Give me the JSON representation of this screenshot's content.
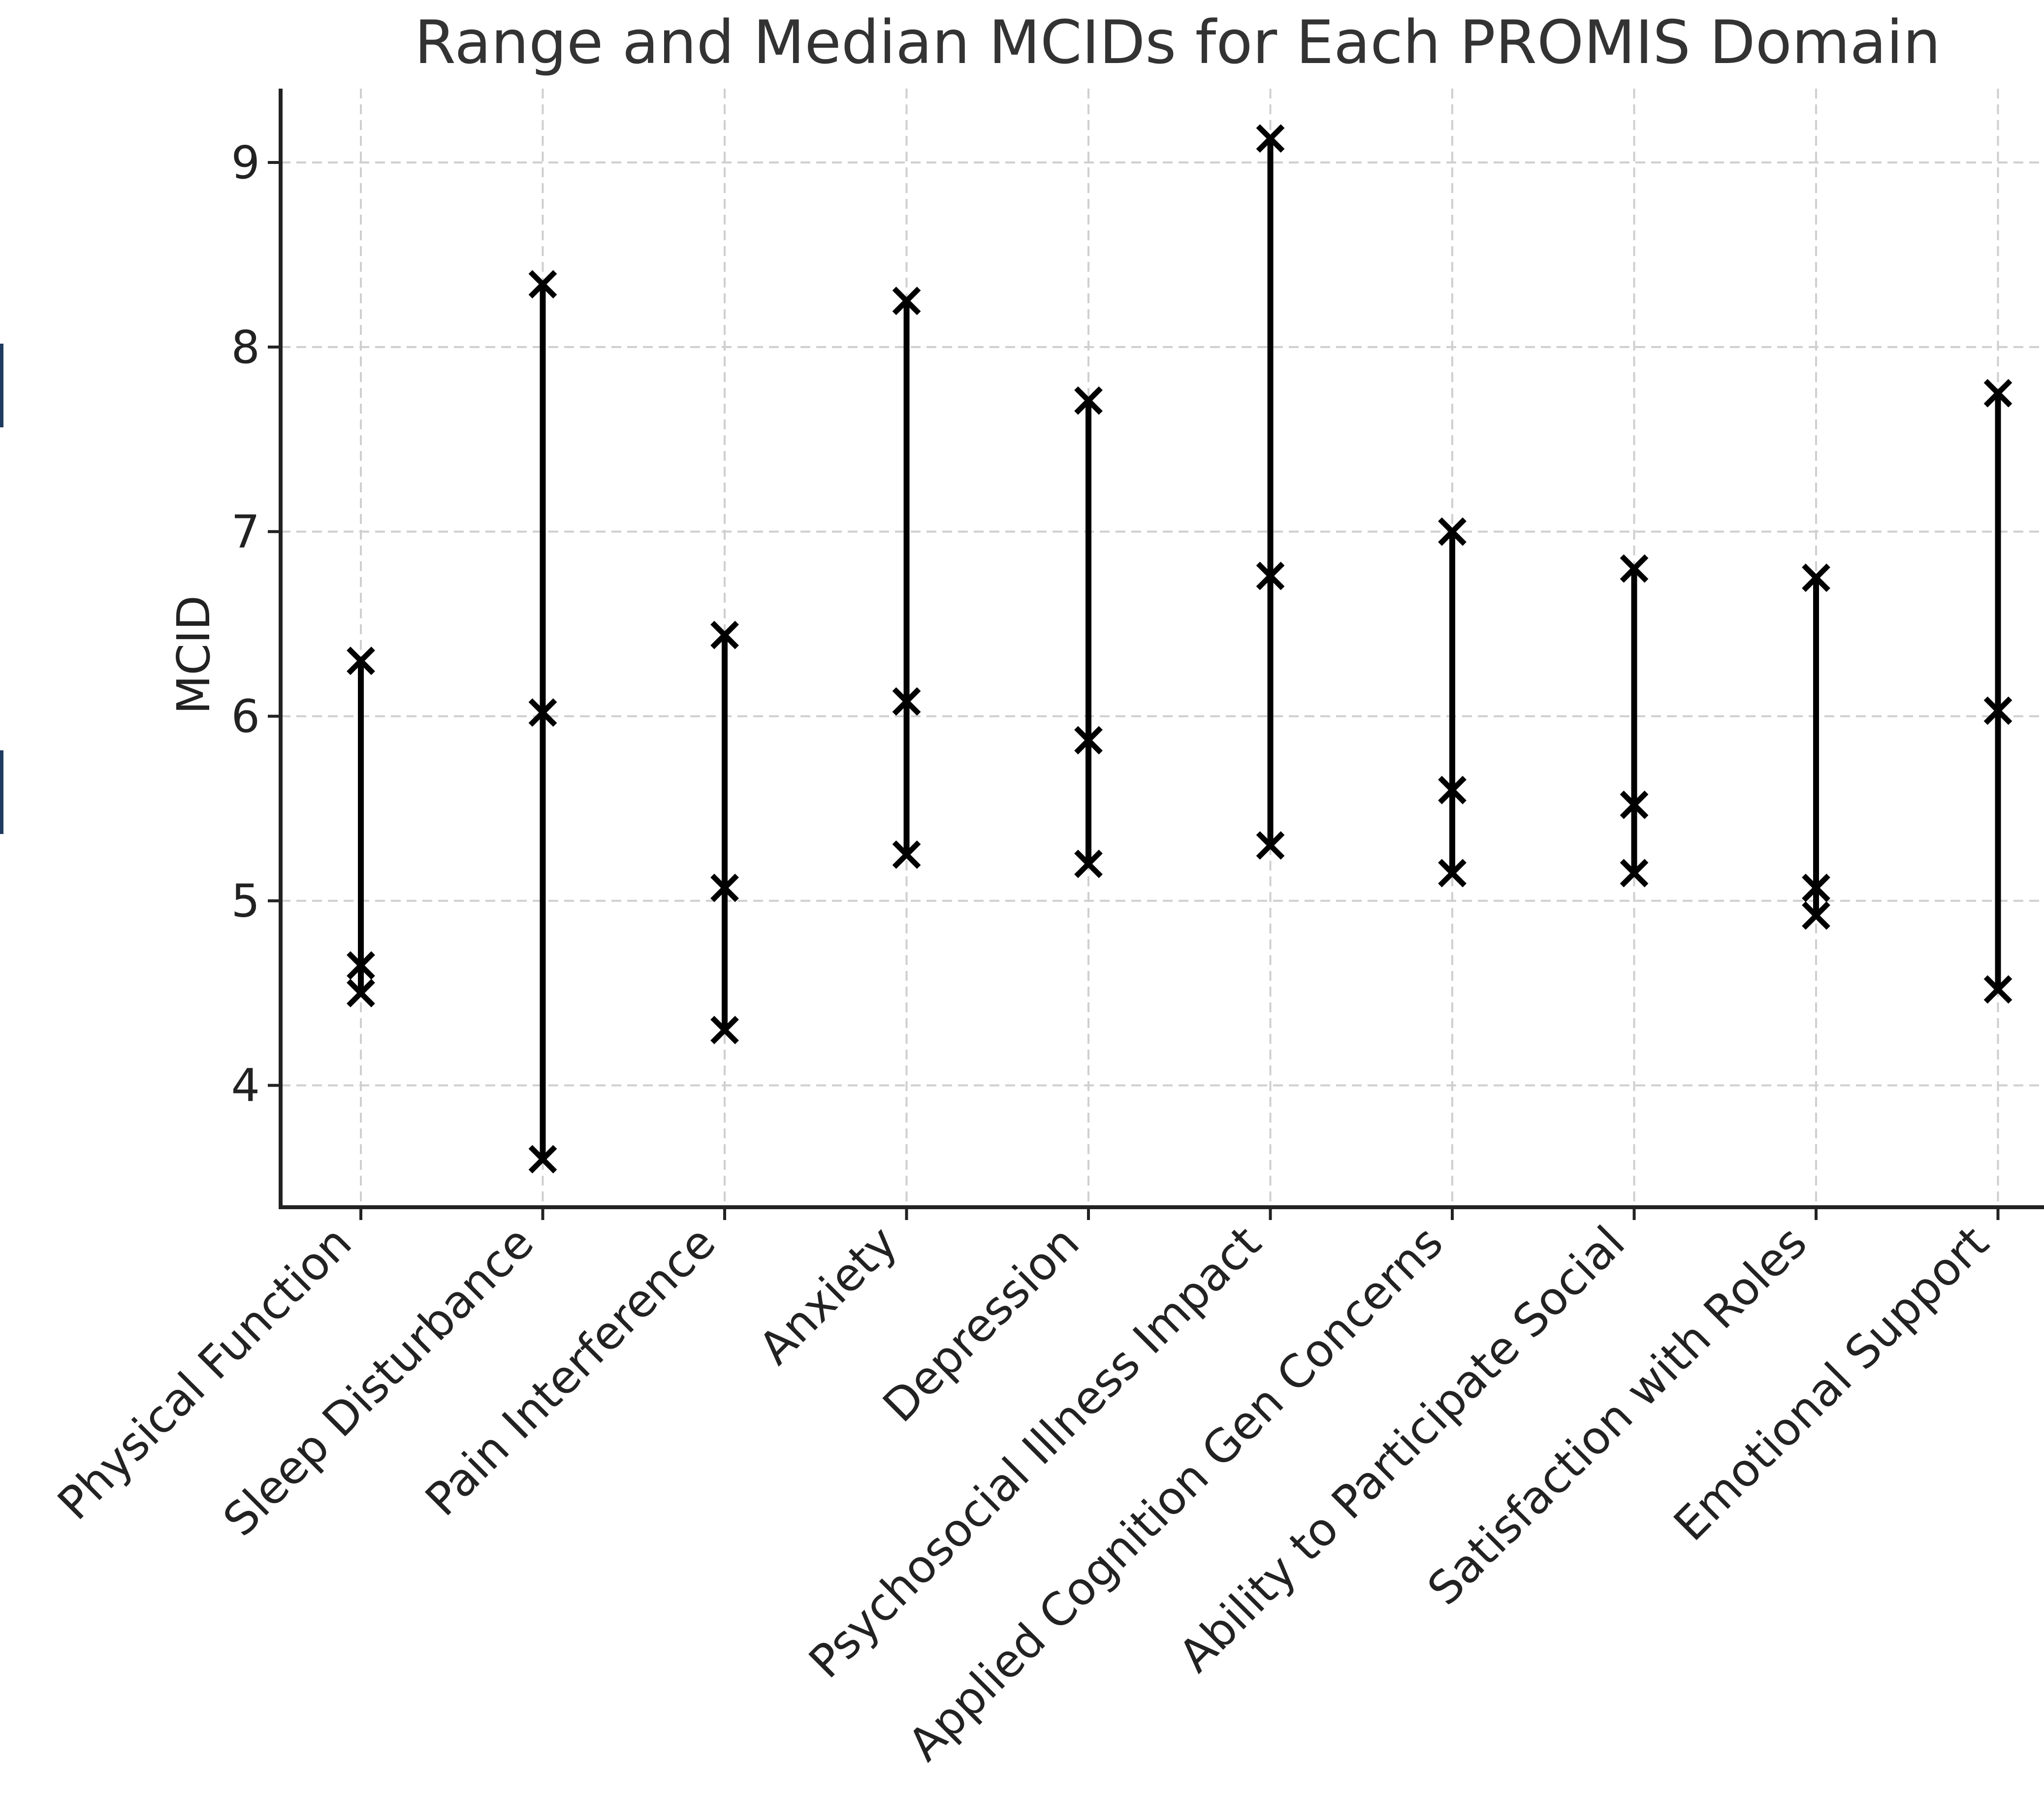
{
  "chart_data": {
    "type": "range",
    "title": "Range and Median MCIDs for Each PROMIS Domain",
    "xlabel": "",
    "ylabel": "MCID",
    "ylim": [
      3.34,
      9.4
    ],
    "yticks": [
      4,
      5,
      6,
      7,
      8,
      9
    ],
    "grid": true,
    "marker_color": "#000000",
    "marker_symbol": "x",
    "categories": [
      "Physical Function",
      "Sleep Disturbance",
      "Pain Interference",
      "Anxiety",
      "Depression",
      "Psychosocial Illness Impact",
      "Applied Cognition Gen Concerns",
      "Ability to Participate Social",
      "Satisfaction with Roles",
      "Emotional Support"
    ],
    "series": [
      {
        "values": [
          4.5,
          3.6,
          4.3,
          5.25,
          5.2,
          5.3,
          5.15,
          5.15,
          4.92,
          4.52
        ]
      },
      {
        "values": [
          4.65,
          6.02,
          5.07,
          6.08,
          5.87,
          6.76,
          5.6,
          5.52,
          5.07,
          6.03
        ]
      },
      {
        "values": [
          6.3,
          8.34,
          6.44,
          8.25,
          7.71,
          9.13,
          7.0,
          6.8,
          6.75,
          7.75
        ]
      }
    ]
  }
}
